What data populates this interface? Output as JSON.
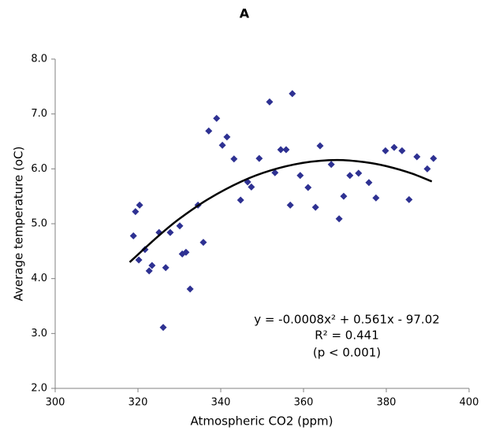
{
  "chart_data": {
    "type": "scatter",
    "title": "A",
    "x_label": "Atmospheric CO2 (ppm)",
    "y_label": "Average temperature (oC)",
    "xlim": [
      300,
      400
    ],
    "xticks": [
      300,
      320,
      340,
      360,
      380,
      400
    ],
    "ylim": [
      2,
      8
    ],
    "yticks": [
      {
        "value": 2,
        "label": "2.0"
      },
      {
        "value": 3,
        "label": "3.0"
      },
      {
        "value": 4,
        "label": "4.0"
      },
      {
        "value": 5,
        "label": "5.0"
      },
      {
        "value": 6,
        "label": "6.0"
      },
      {
        "value": 7,
        "label": "7.0"
      },
      {
        "value": 8,
        "label": "8.0"
      }
    ],
    "grid": false,
    "series": [
      {
        "color": "#2e3192",
        "x": [
          318.9,
          319.4,
          320.4,
          320.2,
          321.7,
          322.7,
          323.4,
          325.1,
          326.7,
          326.1,
          327.8,
          330.1,
          330.7,
          331.6,
          332.6,
          334.5,
          335.8,
          337.1,
          339.0,
          340.4,
          341.5,
          343.2,
          344.8,
          346.5,
          347.4,
          349.3,
          351.8,
          353.1,
          354.5,
          355.8,
          356.8,
          357.3,
          359.2,
          361.1,
          362.9,
          364.0,
          366.7,
          368.6,
          369.7,
          371.2,
          373.3,
          375.8,
          377.5,
          379.8,
          381.9,
          383.8,
          385.5,
          387.4,
          389.9,
          391.4
        ],
        "values": [
          4.78,
          5.22,
          5.34,
          4.34,
          4.53,
          4.14,
          4.24,
          4.84,
          4.2,
          3.11,
          4.84,
          4.96,
          4.45,
          4.48,
          3.81,
          5.34,
          4.66,
          6.69,
          6.92,
          6.43,
          6.58,
          6.18,
          5.43,
          5.76,
          5.67,
          6.19,
          7.22,
          5.93,
          6.35,
          6.35,
          5.34,
          7.37,
          5.88,
          5.66,
          5.3,
          6.42,
          6.08,
          5.09,
          5.5,
          5.88,
          5.92,
          5.75,
          5.47,
          6.33,
          6.39,
          6.33,
          5.44,
          6.22,
          6.0,
          6.19
        ]
      }
    ],
    "trendline": {
      "color": "#000000",
      "x": [
        318,
        325,
        330,
        337,
        345,
        352,
        360,
        368,
        375,
        380,
        386,
        391
      ],
      "values": [
        4.3,
        4.78,
        5.09,
        5.45,
        5.77,
        5.97,
        6.11,
        6.16,
        6.12,
        6.05,
        5.92,
        5.77
      ]
    },
    "annotations": [
      "y = -0.0008x² + 0.561x - 97.02",
      "R² = 0.441",
      "(p < 0.001)"
    ]
  }
}
